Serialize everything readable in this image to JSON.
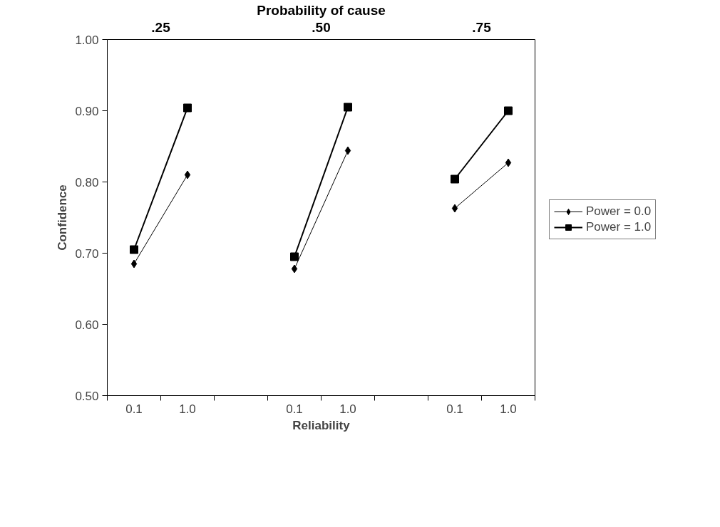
{
  "chart_data": {
    "type": "line",
    "title": "Probability of cause",
    "xlabel": "Reliability",
    "ylabel": "Confidence",
    "categories": [
      "0.1",
      "1.0",
      null,
      "0.1",
      "1.0",
      null,
      "0.1",
      "1.0"
    ],
    "annotations": [
      ".25",
      ".50",
      ".75"
    ],
    "series": [
      {
        "name": "Power = 0.0",
        "color": "#000000",
        "marker": "diamond",
        "values": [
          0.685,
          0.81,
          null,
          0.678,
          0.844,
          null,
          0.763,
          0.827
        ]
      },
      {
        "name": "Power = 1.0",
        "color": "#000000",
        "marker": "square",
        "values": [
          0.705,
          0.904,
          null,
          0.695,
          0.905,
          null,
          0.804,
          0.9
        ]
      }
    ],
    "ylim": [
      0.5,
      1.0
    ],
    "yticks": [
      {
        "value": 0.5,
        "label": "0.50"
      },
      {
        "value": 0.6,
        "label": "0.60"
      },
      {
        "value": 0.7,
        "label": "0.70"
      },
      {
        "value": 0.8,
        "label": "0.80"
      },
      {
        "value": 0.9,
        "label": "0.90"
      },
      {
        "value": 1.0,
        "label": "1.00"
      }
    ],
    "grid": false,
    "legend": "right",
    "line_style": "solid"
  }
}
